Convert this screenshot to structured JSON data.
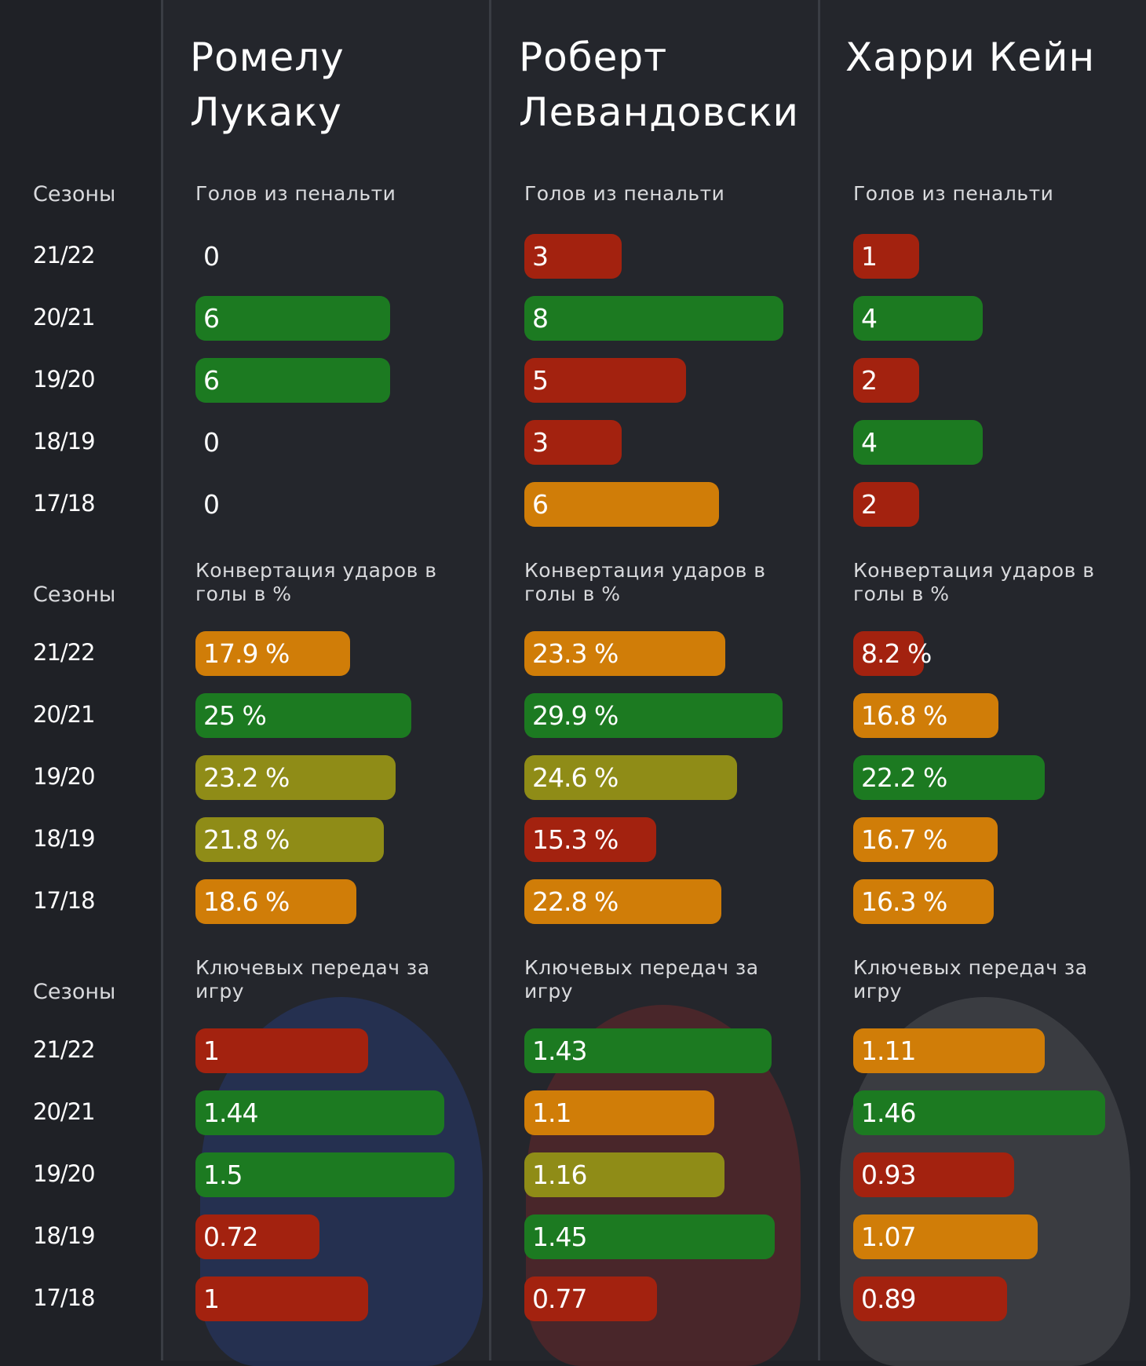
{
  "colors": {
    "high": "#1c7a21",
    "upper": "#8f8c17",
    "mid": "#d07d08",
    "low": "#a3220f",
    "background": "#1f2126"
  },
  "season_header": "Сезоны",
  "seasons": [
    "21/22",
    "20/21",
    "19/20",
    "18/19",
    "17/18"
  ],
  "players": [
    {
      "name": "Ромелу\nЛукаку"
    },
    {
      "name": "Роберт\nЛевандовски"
    },
    {
      "name": "Харри Кейн"
    }
  ],
  "chart_data": [
    {
      "type": "bar",
      "title": "Голов из пенальти",
      "categories": [
        "21/22",
        "20/21",
        "19/20",
        "18/19",
        "17/18"
      ],
      "xmax": 8,
      "series": [
        {
          "name": "Ромелу Лукаку",
          "values": [
            0,
            6,
            6,
            0,
            0
          ],
          "labels": [
            "0",
            "6",
            "6",
            "0",
            "0"
          ],
          "tiers": [
            "none",
            "high",
            "high",
            "none",
            "none"
          ]
        },
        {
          "name": "Роберт Левандовски",
          "values": [
            3,
            8,
            5,
            3,
            6
          ],
          "labels": [
            "3",
            "8",
            "5",
            "3",
            "6"
          ],
          "tiers": [
            "low",
            "high",
            "low",
            "low",
            "mid"
          ]
        },
        {
          "name": "Харри Кейн",
          "values": [
            1,
            4,
            2,
            4,
            2
          ],
          "labels": [
            "1",
            "4",
            "2",
            "4",
            "2"
          ],
          "tiers": [
            "low",
            "high",
            "low",
            "high",
            "low"
          ]
        }
      ]
    },
    {
      "type": "bar",
      "title": "Конвертация ударов в голы в %",
      "categories": [
        "21/22",
        "20/21",
        "19/20",
        "18/19",
        "17/18"
      ],
      "xmax": 30,
      "series": [
        {
          "name": "Ромелу Лукаку",
          "values": [
            17.9,
            25,
            23.2,
            21.8,
            18.6
          ],
          "labels": [
            "17.9 %",
            "25 %",
            "23.2 %",
            "21.8 %",
            "18.6 %"
          ],
          "tiers": [
            "mid",
            "high",
            "upper",
            "upper",
            "mid"
          ]
        },
        {
          "name": "Роберт Левандовски",
          "values": [
            23.3,
            29.9,
            24.6,
            15.3,
            22.8
          ],
          "labels": [
            "23.3 %",
            "29.9 %",
            "24.6 %",
            "15.3 %",
            "22.8 %"
          ],
          "tiers": [
            "mid",
            "high",
            "upper",
            "low",
            "mid"
          ]
        },
        {
          "name": "Харри Кейн",
          "values": [
            8.2,
            16.8,
            22.2,
            16.7,
            16.3
          ],
          "labels": [
            "8.2 %",
            "16.8 %",
            "22.2 %",
            "16.7 %",
            "16.3 %"
          ],
          "tiers": [
            "low",
            "mid",
            "high",
            "mid",
            "mid"
          ]
        }
      ]
    },
    {
      "type": "bar",
      "title": "Ключевых передач за игру",
      "categories": [
        "21/22",
        "20/21",
        "19/20",
        "18/19",
        "17/18"
      ],
      "xmax": 1.5,
      "series": [
        {
          "name": "Ромелу Лукаку",
          "values": [
            1,
            1.44,
            1.5,
            0.72,
            1
          ],
          "labels": [
            "1",
            "1.44",
            "1.5",
            "0.72",
            "1"
          ],
          "tiers": [
            "low",
            "high",
            "high",
            "low",
            "low"
          ]
        },
        {
          "name": "Роберт Левандовски",
          "values": [
            1.43,
            1.1,
            1.16,
            1.45,
            0.77
          ],
          "labels": [
            "1.43",
            "1.1",
            "1.16",
            "1.45",
            "0.77"
          ],
          "tiers": [
            "high",
            "mid",
            "upper",
            "high",
            "low"
          ]
        },
        {
          "name": "Харри Кейн",
          "values": [
            1.11,
            1.46,
            0.93,
            1.07,
            0.89
          ],
          "labels": [
            "1.11",
            "1.46",
            "0.93",
            "1.07",
            "0.89"
          ],
          "tiers": [
            "mid",
            "high",
            "low",
            "mid",
            "low"
          ]
        }
      ]
    }
  ]
}
